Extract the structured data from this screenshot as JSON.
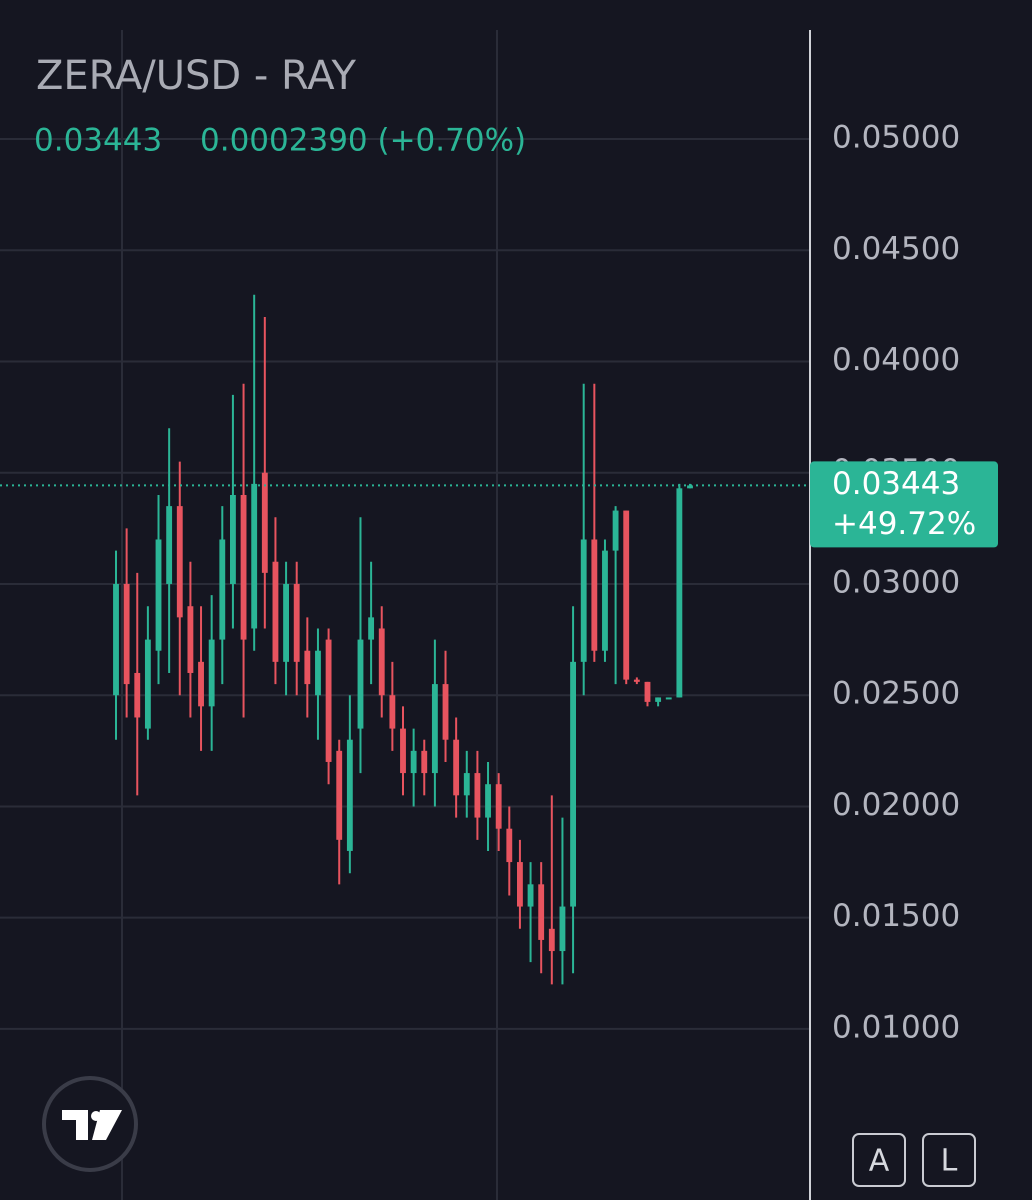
{
  "header": {
    "title": "ZERA/USD - RAY",
    "price": "0.03443",
    "change": "0.0002390 (+0.70%)"
  },
  "chart_data": {
    "type": "candlestick",
    "up_color": "#2bb596",
    "down_color": "#e8545f",
    "grid": true,
    "ylim": [
      0.00231,
      0.05625
    ],
    "yticks": [
      {
        "value": 0.05,
        "label": "0.05000"
      },
      {
        "value": 0.045,
        "label": "0.04500"
      },
      {
        "value": 0.04,
        "label": "0.04000"
      },
      {
        "value": 0.035,
        "label": "0.03500"
      },
      {
        "value": 0.03,
        "label": "0.03000"
      },
      {
        "value": 0.025,
        "label": "0.02500"
      },
      {
        "value": 0.02,
        "label": "0.02000"
      },
      {
        "value": 0.015,
        "label": "0.01500"
      },
      {
        "value": 0.01,
        "label": "0.01000"
      }
    ],
    "open": [
      0.025,
      0.03,
      0.026,
      0.0235,
      0.027,
      0.03,
      0.0335,
      0.029,
      0.0265,
      0.0245,
      0.0275,
      0.03,
      0.034,
      0.028,
      0.035,
      0.031,
      0.0265,
      0.03,
      0.027,
      0.025,
      0.0275,
      0.0225,
      0.018,
      0.0235,
      0.0275,
      0.028,
      0.025,
      0.0235,
      0.0215,
      0.0225,
      0.0215,
      0.0255,
      0.023,
      0.0205,
      0.0215,
      0.0195,
      0.021,
      0.019,
      0.0175,
      0.0155,
      0.0165,
      0.0145,
      0.0135,
      0.0155,
      0.0265,
      0.032,
      0.027,
      0.0315,
      0.0333,
      0.0257,
      0.0256,
      0.0247,
      0.0249,
      0.0249,
      0.0343
    ],
    "high": [
      0.0315,
      0.0325,
      0.0305,
      0.029,
      0.034,
      0.037,
      0.0355,
      0.031,
      0.029,
      0.0295,
      0.0335,
      0.0385,
      0.039,
      0.043,
      0.042,
      0.033,
      0.031,
      0.031,
      0.0285,
      0.028,
      0.028,
      0.023,
      0.025,
      0.033,
      0.031,
      0.029,
      0.0265,
      0.0245,
      0.0235,
      0.023,
      0.0275,
      0.027,
      0.024,
      0.0225,
      0.0225,
      0.022,
      0.0215,
      0.02,
      0.0185,
      0.0175,
      0.0175,
      0.0205,
      0.0195,
      0.029,
      0.039,
      0.039,
      0.032,
      0.0335,
      0.0333,
      0.0258,
      0.0256,
      0.0249,
      0.0249,
      0.0345,
      0.0345
    ],
    "low": [
      0.023,
      0.024,
      0.0205,
      0.023,
      0.0255,
      0.026,
      0.025,
      0.024,
      0.0225,
      0.0225,
      0.0255,
      0.028,
      0.024,
      0.027,
      0.028,
      0.0255,
      0.025,
      0.025,
      0.024,
      0.023,
      0.021,
      0.0165,
      0.017,
      0.0215,
      0.0255,
      0.024,
      0.0225,
      0.0205,
      0.02,
      0.0205,
      0.02,
      0.022,
      0.0195,
      0.0195,
      0.0185,
      0.018,
      0.018,
      0.016,
      0.0145,
      0.013,
      0.0125,
      0.012,
      0.012,
      0.0125,
      0.025,
      0.0265,
      0.0265,
      0.0255,
      0.0255,
      0.0255,
      0.0245,
      0.0245,
      0.0249,
      0.0249,
      0.0343
    ],
    "close": [
      0.03,
      0.0255,
      0.024,
      0.0275,
      0.032,
      0.0335,
      0.0285,
      0.026,
      0.0245,
      0.0275,
      0.032,
      0.034,
      0.0275,
      0.0345,
      0.0305,
      0.0265,
      0.03,
      0.0265,
      0.0255,
      0.027,
      0.022,
      0.0185,
      0.023,
      0.0275,
      0.0285,
      0.025,
      0.0235,
      0.0215,
      0.0225,
      0.0215,
      0.0255,
      0.023,
      0.0205,
      0.0215,
      0.0195,
      0.021,
      0.019,
      0.0175,
      0.0155,
      0.0165,
      0.014,
      0.0135,
      0.0155,
      0.0265,
      0.032,
      0.027,
      0.0315,
      0.0333,
      0.0257,
      0.0256,
      0.0247,
      0.0249,
      0.0249,
      0.0343,
      0.03443
    ],
    "last_price": {
      "value": 0.03443,
      "label": "0.03443"
    },
    "last_change": "+49.72%",
    "buttons": [
      "A",
      "L"
    ]
  }
}
